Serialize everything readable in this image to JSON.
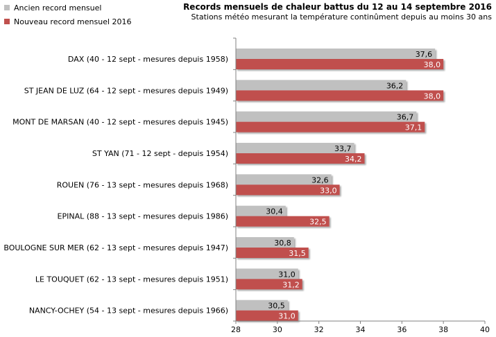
{
  "chart_data": {
    "type": "bar",
    "orientation": "horizontal",
    "title": "Records mensuels de chaleur battus du 12 au 14 septembre 2016",
    "subtitle": "Stations météo mesurant la température continûment depuis au moins 30 ans",
    "categories": [
      "DAX (40 - 12 sept - mesures depuis 1958)",
      "ST JEAN DE LUZ (64 - 12 sept - mesures depuis 1949)",
      "MONT DE MARSAN (40 - 12 sept - mesures depuis 1945)",
      "ST YAN (71 - 12 sept - depuis 1954)",
      "ROUEN (76 - 13 sept - mesures depuis 1968)",
      "EPINAL (88 - 13 sept - mesures depuis 1986)",
      "BOULOGNE SUR MER (62 - 13 sept - mesures depuis 1947)",
      "LE TOUQUET (62 - 13 sept - mesures depuis 1951)",
      "NANCY-OCHEY (54 - 13 sept - mesures depuis 1966)"
    ],
    "series": [
      {
        "name": "Ancien record mensuel",
        "color": "#c0c0c0",
        "values": [
          37.6,
          36.2,
          36.7,
          33.7,
          32.6,
          30.4,
          30.8,
          31.0,
          30.5
        ],
        "labels": [
          "37,6",
          "36,2",
          "36,7",
          "33,7",
          "32,6",
          "30,4",
          "30,8",
          "31,0",
          "30,5"
        ]
      },
      {
        "name": "Nouveau record mensuel 2016",
        "color": "#c0504d",
        "values": [
          38.0,
          38.0,
          37.1,
          34.2,
          33.0,
          32.5,
          31.5,
          31.2,
          31.0
        ],
        "labels": [
          "38,0",
          "38,0",
          "37,1",
          "34,2",
          "33,0",
          "32,5",
          "31,5",
          "31,2",
          "31,0"
        ]
      }
    ],
    "xlim": [
      28,
      40
    ],
    "xticks": [
      28,
      30,
      32,
      34,
      36,
      38,
      40
    ],
    "xlabel": "",
    "ylabel": "",
    "grid": false,
    "legend": "top-left"
  }
}
